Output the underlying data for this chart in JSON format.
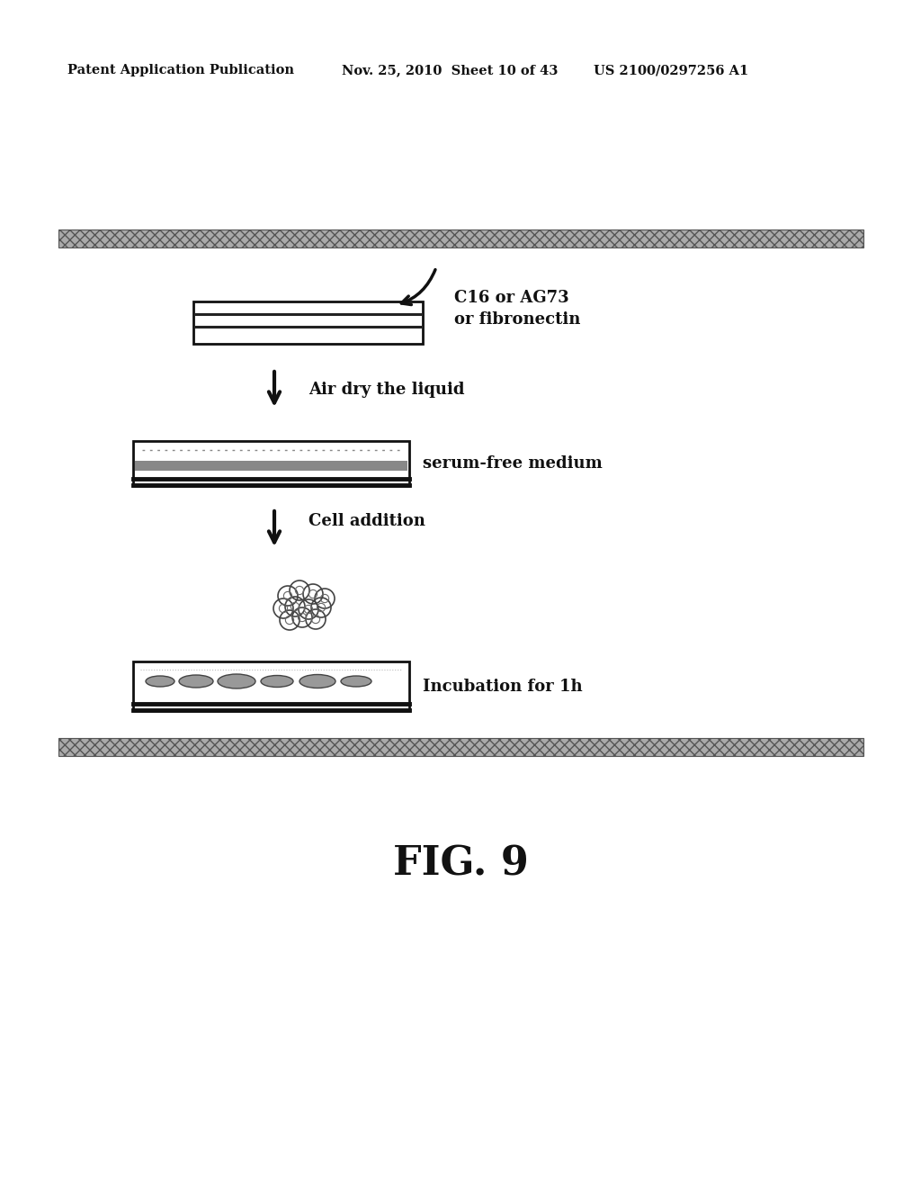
{
  "background_color": "#ffffff",
  "header_left": "Patent Application Publication",
  "header_mid": "Nov. 25, 2010  Sheet 10 of 43",
  "header_right": "US 2100/0297256 A1",
  "fig_label": "FIG. 9",
  "step1_label": "C16 or AG73\nor fibronectin",
  "step2_label": "Air dry the liquid",
  "step3_label": "serum-free medium",
  "step4_label": "Cell addition",
  "step5_label": "Incubation for 1h",
  "text_color": "#111111",
  "band_color": "#999999",
  "band_hatch_color": "#555555"
}
